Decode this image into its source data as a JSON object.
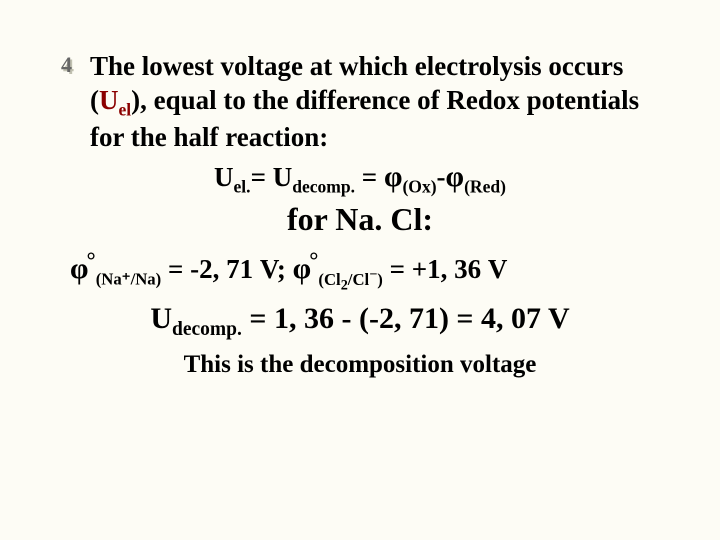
{
  "bullet": {
    "shadow_color": "#c0c0b0",
    "fill_color": "#666666"
  },
  "paragraph": {
    "prefix": "The lowest voltage at which electrolysis occurs (",
    "uel_main": "U",
    "uel_sub": "el",
    "suffix": "), equal to the difference of Redox potentials for the half reaction:",
    "uel_color": "#8b0000"
  },
  "equation": {
    "u_main": "U",
    "el_sub": "el.",
    "eq1": "= ",
    "u_main2": "U",
    "decomp_sub": "decomp.",
    "eq2": " = ",
    "phi": "φ",
    "ox_sub": "(Ox)",
    "minus": "-",
    "red_sub": "(Red)"
  },
  "nacl_line": "for Na. Cl:",
  "potentials": {
    "phi": "φ",
    "na_pair": "(Na⁺/Na)",
    "na_val": " = -2, 71 V;   ",
    "cl_pair_a": "(Cl",
    "cl_pair_2": "2",
    "cl_pair_b": "/Cl",
    "cl_pair_minus": "−",
    "cl_pair_c": ")",
    "cl_val": " = +1, 36 V"
  },
  "decomp_line": {
    "u": "U",
    "sub": "decomp.",
    "rest": " = 1, 36 - (-2, 71) = 4, 07 V"
  },
  "final_line": "This is the decomposition voltage"
}
